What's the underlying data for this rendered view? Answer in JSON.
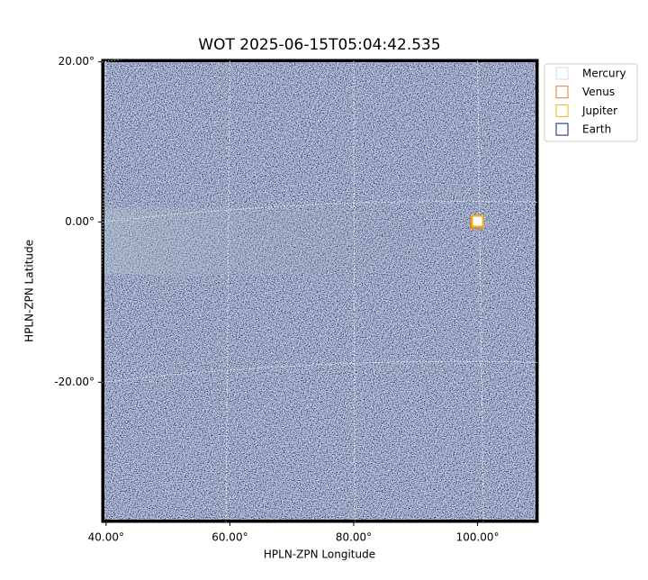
{
  "chart_data": {
    "type": "image",
    "title": "WOT 2025-06-15T05:04:42.535",
    "x_label": "HPLN-ZPN Longitude",
    "y_label": "HPLN-ZPN Latitude",
    "xlim": [
      39.3,
      109.8
    ],
    "ylim": [
      -37.5,
      20.3
    ],
    "xticks": [
      {
        "value": 40,
        "label": "40.00°"
      },
      {
        "value": 60,
        "label": "60.00°"
      },
      {
        "value": 80,
        "label": "80.00°"
      },
      {
        "value": 100,
        "label": "100.00°"
      }
    ],
    "yticks": [
      {
        "value": 20,
        "label": "20.00°"
      },
      {
        "value": 0,
        "label": "0.00°"
      },
      {
        "value": -20,
        "label": "-20.00°"
      }
    ],
    "grid": true,
    "legend": "upper right outside",
    "series": [
      {
        "name": "Mercury",
        "color": "#d9d9d9"
      },
      {
        "name": "Venus",
        "color": "#e07b39",
        "x": [
          99.8
        ],
        "y": [
          -0.1
        ]
      },
      {
        "name": "Jupiter",
        "color": "#e8b417",
        "x": [
          100.0
        ],
        "y": [
          0.1
        ]
      },
      {
        "name": "Earth",
        "color": "#1a1a7a"
      }
    ]
  }
}
